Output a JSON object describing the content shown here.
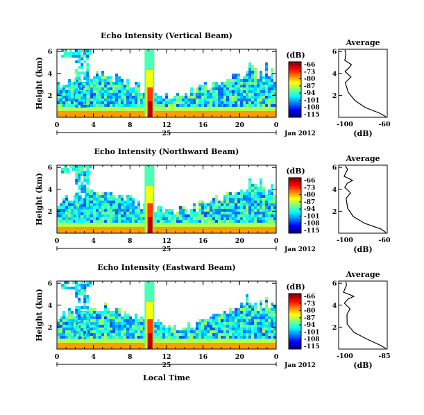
{
  "chart_data": [
    {
      "type": "heatmap",
      "title": "Echo Intensity (Vertical Beam)",
      "ylabel": "Height (km)",
      "yticks": [
        "2",
        "4",
        "6"
      ],
      "xticks": [
        "0",
        "4",
        "8",
        "12",
        "16",
        "20",
        "0"
      ],
      "date_label": "25",
      "month_label": "Jan 2012",
      "colorbar": {
        "title": "(dB)",
        "labels": [
          "-66",
          "-73",
          "-80",
          "-87",
          "-94",
          "-101",
          "-108",
          "-115"
        ]
      },
      "average": {
        "title": "Average",
        "xlabel": "(dB)",
        "xticks": [
          "-100",
          "-60"
        ],
        "yticks": [
          "2",
          "4",
          "6"
        ]
      }
    },
    {
      "type": "heatmap",
      "title": "Echo Intensity (Northward Beam)",
      "ylabel": "Height (km)",
      "yticks": [
        "2",
        "4",
        "6"
      ],
      "xticks": [
        "0",
        "4",
        "8",
        "12",
        "16",
        "20",
        "0"
      ],
      "date_label": "25",
      "month_label": "Jan 2012",
      "colorbar": {
        "title": "(dB)",
        "labels": [
          "-66",
          "-73",
          "-80",
          "-87",
          "-94",
          "-101",
          "-108",
          "-115"
        ]
      },
      "average": {
        "title": "Average",
        "xlabel": "(dB)",
        "xticks": [
          "-100",
          "-60"
        ],
        "yticks": [
          "2",
          "4",
          "6"
        ]
      }
    },
    {
      "type": "heatmap",
      "title": "Echo Intensity (Eastward Beam)",
      "ylabel": "Height (km)",
      "yticks": [
        "2",
        "4",
        "6"
      ],
      "xticks": [
        "0",
        "4",
        "8",
        "12",
        "16",
        "20",
        "0"
      ],
      "date_label": "25",
      "month_label": "Jan 2012",
      "colorbar": {
        "title": "(dB)",
        "labels": [
          "-66",
          "-73",
          "-80",
          "-87",
          "-94",
          "-101",
          "-108",
          "-115"
        ]
      },
      "average": {
        "title": "Average",
        "xlabel": "(dB)",
        "xticks": [
          "-100",
          "-85"
        ],
        "yticks": [
          "2",
          "4",
          "6"
        ]
      }
    }
  ],
  "footer": {
    "xlabel": "Local Time"
  }
}
